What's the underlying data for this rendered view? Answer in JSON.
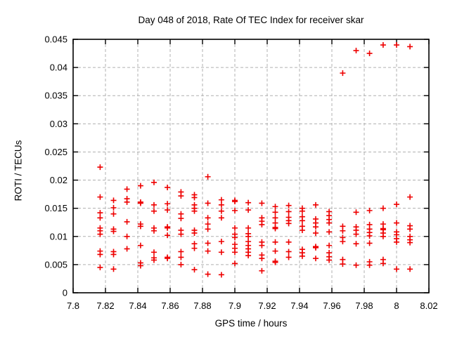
{
  "chart_data": {
    "type": "scatter",
    "title": "Day 048 of 2018, Rate Of TEC Index for receiver skar",
    "xlabel": "GPS time / hours",
    "ylabel": "ROTI / TECUs",
    "xlim": [
      7.8,
      8.02
    ],
    "ylim": [
      0,
      0.045
    ],
    "grid": true,
    "legend": "none",
    "marker": "plus",
    "marker_color": "#ee0000",
    "grid_color": "#b0b0b0",
    "axis_color": "#000000",
    "xticks": {
      "values": [
        7.8,
        7.82,
        7.84,
        7.86,
        7.88,
        7.9,
        7.92,
        7.94,
        7.96,
        7.98,
        8.0,
        8.02
      ],
      "labels": [
        "7.8",
        "7.82",
        "7.84",
        "7.86",
        "7.88",
        "7.9",
        "7.92",
        "7.94",
        "7.96",
        "7.98",
        "8",
        "8.02"
      ]
    },
    "yticks": {
      "values": [
        0,
        0.005,
        0.01,
        0.015,
        0.02,
        0.025,
        0.03,
        0.035,
        0.04,
        0.045
      ],
      "labels": [
        "0",
        "0.005",
        "0.01",
        "0.015",
        "0.02",
        "0.025",
        "0.03",
        "0.035",
        "0.04",
        "0.045"
      ]
    },
    "points": [
      {
        "x": 7.8167,
        "y": [
          0.0223,
          0.017,
          0.0142,
          0.0133,
          0.0115,
          0.011,
          0.0104,
          0.0074,
          0.0068,
          0.0045
        ]
      },
      {
        "x": 7.825,
        "y": [
          0.0164,
          0.0151,
          0.014,
          0.0113,
          0.0109,
          0.0073,
          0.0068,
          0.0042
        ]
      },
      {
        "x": 7.8333,
        "y": [
          0.0184,
          0.0167,
          0.0161,
          0.0126,
          0.01,
          0.0078
        ]
      },
      {
        "x": 7.8417,
        "y": [
          0.019,
          0.0161,
          0.0159,
          0.0122,
          0.0118,
          0.0084,
          0.0053,
          0.0048
        ]
      },
      {
        "x": 7.85,
        "y": [
          0.0196,
          0.0156,
          0.0145,
          0.0115,
          0.011,
          0.0072,
          0.0062,
          0.0058
        ]
      },
      {
        "x": 7.8583,
        "y": [
          0.0187,
          0.0158,
          0.0147,
          0.0117,
          0.0115,
          0.0102,
          0.0063,
          0.0061
        ]
      },
      {
        "x": 7.8667,
        "y": [
          0.0179,
          0.0172,
          0.014,
          0.0132,
          0.0111,
          0.0104,
          0.0073,
          0.0063,
          0.005
        ]
      },
      {
        "x": 7.875,
        "y": [
          0.0174,
          0.0169,
          0.0156,
          0.015,
          0.0145,
          0.0111,
          0.0106,
          0.0087,
          0.0079,
          0.0041
        ]
      },
      {
        "x": 7.8833,
        "y": [
          0.0206,
          0.0159,
          0.0133,
          0.0122,
          0.0113,
          0.0088,
          0.0074,
          0.0033
        ]
      },
      {
        "x": 7.8917,
        "y": [
          0.0165,
          0.0156,
          0.0145,
          0.0133,
          0.0091,
          0.0072,
          0.0032
        ]
      },
      {
        "x": 7.9,
        "y": [
          0.0164,
          0.0162,
          0.0146,
          0.0115,
          0.0104,
          0.0098,
          0.0086,
          0.0079,
          0.0072,
          0.0052
        ]
      },
      {
        "x": 7.9083,
        "y": [
          0.016,
          0.0147,
          0.0115,
          0.0105,
          0.01,
          0.0091,
          0.0084,
          0.0078,
          0.0072,
          0.0066
        ]
      },
      {
        "x": 7.9167,
        "y": [
          0.0159,
          0.0133,
          0.0127,
          0.0121,
          0.009,
          0.0084,
          0.0067,
          0.0061,
          0.0039
        ]
      },
      {
        "x": 7.925,
        "y": [
          0.0153,
          0.0143,
          0.0133,
          0.0124,
          0.0116,
          0.0114,
          0.009,
          0.0074,
          0.0056,
          0.0054
        ]
      },
      {
        "x": 7.9333,
        "y": [
          0.0155,
          0.0144,
          0.0134,
          0.0128,
          0.0123,
          0.009,
          0.0073,
          0.0063
        ]
      },
      {
        "x": 7.9417,
        "y": [
          0.015,
          0.0145,
          0.0135,
          0.0128,
          0.0118,
          0.0111,
          0.0077,
          0.0071,
          0.0065
        ]
      },
      {
        "x": 7.95,
        "y": [
          0.0156,
          0.0131,
          0.0124,
          0.0117,
          0.0106,
          0.0082,
          0.008,
          0.0061
        ]
      },
      {
        "x": 7.9583,
        "y": [
          0.0144,
          0.0137,
          0.013,
          0.0124,
          0.0108,
          0.0084,
          0.0071,
          0.0064,
          0.0058
        ]
      },
      {
        "x": 7.9667,
        "y": [
          0.039,
          0.0118,
          0.011,
          0.0098,
          0.0091,
          0.0059,
          0.0051
        ]
      },
      {
        "x": 7.975,
        "y": [
          0.043,
          0.0143,
          0.0117,
          0.0111,
          0.0104,
          0.0087,
          0.0049
        ]
      },
      {
        "x": 7.9833,
        "y": [
          0.0425,
          0.0146,
          0.0121,
          0.0113,
          0.0107,
          0.0101,
          0.0088,
          0.0055,
          0.0049
        ]
      },
      {
        "x": 7.9917,
        "y": [
          0.044,
          0.015,
          0.0122,
          0.0114,
          0.0112,
          0.0106,
          0.01,
          0.0059,
          0.0052
        ]
      },
      {
        "x": 8.0,
        "y": [
          0.044,
          0.0157,
          0.0124,
          0.0108,
          0.0103,
          0.0096,
          0.009,
          0.0042
        ]
      },
      {
        "x": 8.0083,
        "y": [
          0.0437,
          0.017,
          0.0119,
          0.0113,
          0.01,
          0.0094,
          0.0089,
          0.0042
        ]
      }
    ]
  }
}
